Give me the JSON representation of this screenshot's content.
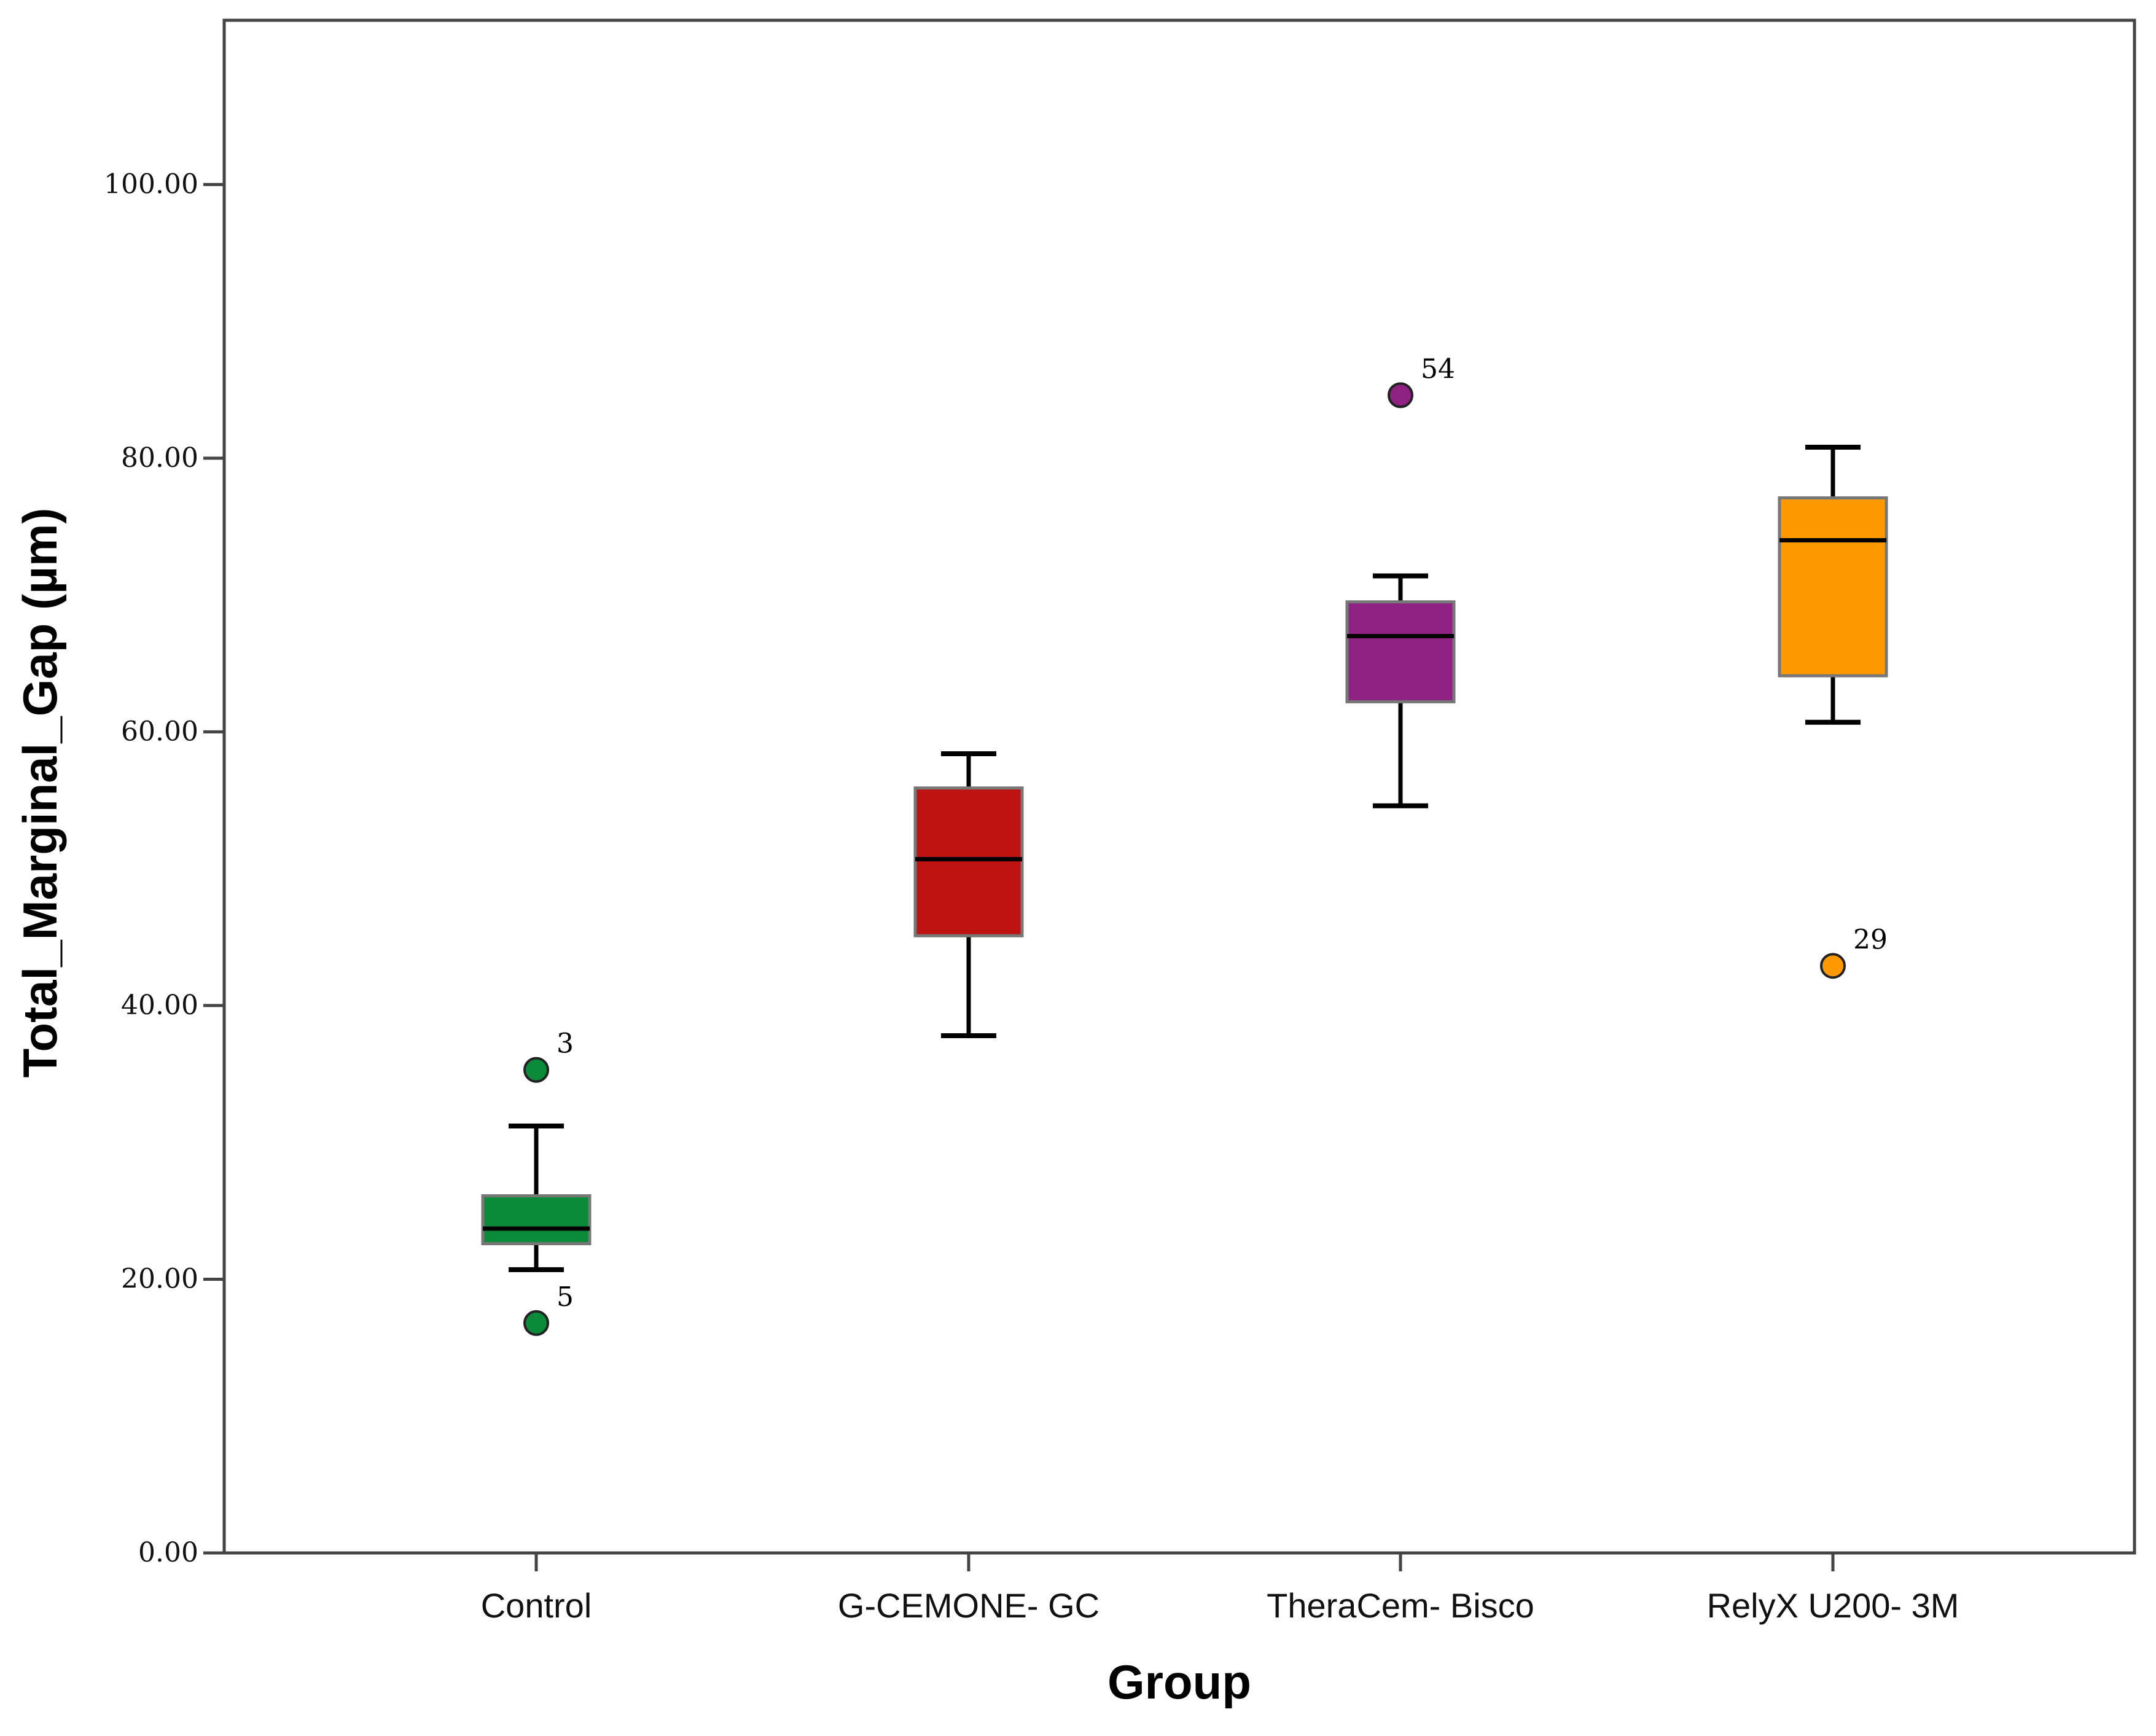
{
  "chart_data": {
    "type": "boxplot",
    "xlabel": "Group",
    "ylabel": "Total_Marginal_Gap (µm)",
    "ylim": [
      0,
      112
    ],
    "yticks": [
      {
        "value": 0,
        "label": "0.00"
      },
      {
        "value": 20,
        "label": "20.00"
      },
      {
        "value": 40,
        "label": "40.00"
      },
      {
        "value": 60,
        "label": "60.00"
      },
      {
        "value": 80,
        "label": "80.00"
      },
      {
        "value": 100,
        "label": "100.00"
      }
    ],
    "categories": [
      "Control",
      "G-CEMONE- GC",
      "TheraCem- Bisco",
      "RelyX U200- 3M"
    ],
    "groups": [
      {
        "name": "Control",
        "color": "#0b8a3a",
        "whisker_low": 20.7,
        "q1": 22.6,
        "median": 23.7,
        "q3": 26.1,
        "whisker_high": 31.2,
        "outliers": [
          {
            "value": 35.3,
            "label": "3"
          },
          {
            "value": 16.8,
            "label": "5"
          }
        ]
      },
      {
        "name": "G-CEMONE- GC",
        "color": "#be1313",
        "whisker_low": 37.8,
        "q1": 45.1,
        "median": 50.7,
        "q3": 55.9,
        "whisker_high": 58.4,
        "outliers": []
      },
      {
        "name": "TheraCem- Bisco",
        "color": "#8e2182",
        "whisker_low": 54.6,
        "q1": 62.2,
        "median": 67.0,
        "q3": 69.5,
        "whisker_high": 71.4,
        "outliers": [
          {
            "value": 84.6,
            "label": "54"
          }
        ]
      },
      {
        "name": "RelyX U200- 3M",
        "color": "#ff9900",
        "whisker_low": 60.7,
        "q1": 64.1,
        "median": 74.0,
        "q3": 77.1,
        "whisker_high": 80.8,
        "outliers": [
          {
            "value": 42.9,
            "label": "29"
          }
        ]
      }
    ]
  }
}
